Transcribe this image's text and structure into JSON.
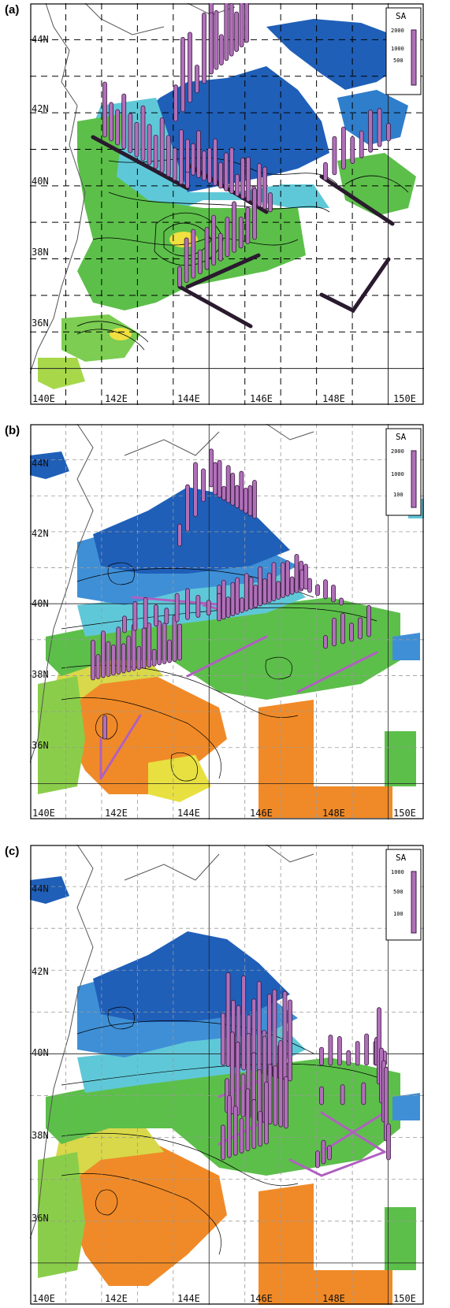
{
  "panels": [
    {
      "label": "(a)",
      "legend": {
        "title": "SA",
        "values": [
          "2000",
          "1000",
          "500"
        ]
      },
      "lat_labels": [
        "44N",
        "42N",
        "40N",
        "38N",
        "36N"
      ],
      "lon_labels": [
        "140E",
        "142E",
        "144E",
        "146E",
        "148E",
        "150E"
      ]
    },
    {
      "label": "(b)",
      "legend": {
        "title": "SA",
        "values": [
          "2000",
          "1000",
          "100"
        ]
      },
      "lat_labels": [
        "44N",
        "42N",
        "40N",
        "38N",
        "36N"
      ],
      "lon_labels": [
        "140E",
        "142E",
        "144E",
        "146E",
        "148E",
        "150E"
      ]
    },
    {
      "label": "(c)",
      "legend": {
        "title": "SA",
        "values": [
          "1000",
          "500",
          "100"
        ]
      },
      "lat_labels": [
        "44N",
        "42N",
        "40N",
        "38N",
        "36N"
      ],
      "lon_labels": [
        "140E",
        "142E",
        "144E",
        "146E",
        "148E",
        "150E"
      ]
    }
  ],
  "colors": {
    "dark_blue": "#1f5fb8",
    "mid_blue": "#3f8fd6",
    "cyan": "#5fc8d8",
    "green": "#5cbf4a",
    "light_green": "#a8d84a",
    "yellow": "#f0e040",
    "orange": "#f08a28",
    "bar_fill": "#b070b8",
    "bar_edge": "#3a1a40",
    "track_a": "#2a1a2e",
    "track_bc": "#b060c0"
  }
}
